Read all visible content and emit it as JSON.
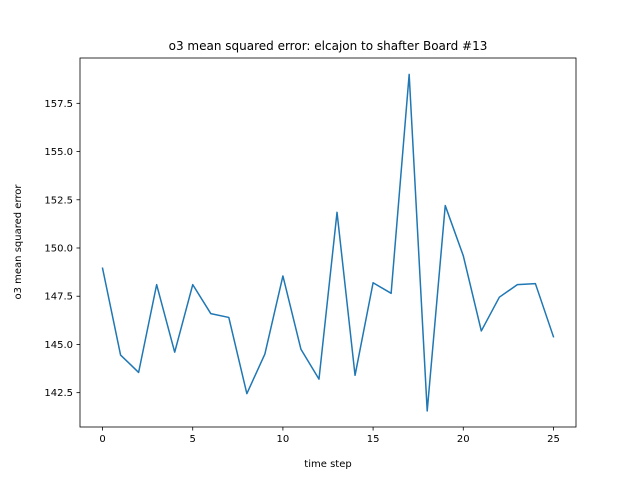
{
  "chart_data": {
    "type": "line",
    "title": "o3 mean squared error: elcajon to shafter Board #13",
    "xlabel": "time step",
    "ylabel": "o3 mean squared error",
    "xlim": [
      -1.25,
      26.25
    ],
    "ylim": [
      140.72,
      159.85
    ],
    "xticks": [
      0,
      5,
      10,
      15,
      20,
      25
    ],
    "yticks": [
      142.5,
      145.0,
      147.5,
      150.0,
      152.5,
      155.0,
      157.5
    ],
    "xtick_labels": [
      "0",
      "5",
      "10",
      "15",
      "20",
      "25"
    ],
    "ytick_labels": [
      "142.5",
      "145.0",
      "147.5",
      "150.0",
      "152.5",
      "155.0",
      "157.5"
    ],
    "grid": false,
    "series": [
      {
        "color": "#1f77b4",
        "x": [
          0,
          1,
          2,
          3,
          4,
          5,
          6,
          7,
          8,
          9,
          10,
          11,
          12,
          13,
          14,
          15,
          16,
          17,
          18,
          19,
          20,
          21,
          22,
          23,
          24,
          25
        ],
        "y": [
          148.95,
          144.45,
          143.55,
          148.1,
          144.6,
          148.1,
          146.6,
          146.4,
          142.45,
          144.5,
          148.55,
          144.75,
          143.2,
          151.85,
          143.4,
          148.2,
          147.65,
          159.0,
          141.55,
          152.2,
          149.6,
          145.7,
          147.45,
          148.1,
          148.15,
          145.4
        ]
      }
    ]
  }
}
